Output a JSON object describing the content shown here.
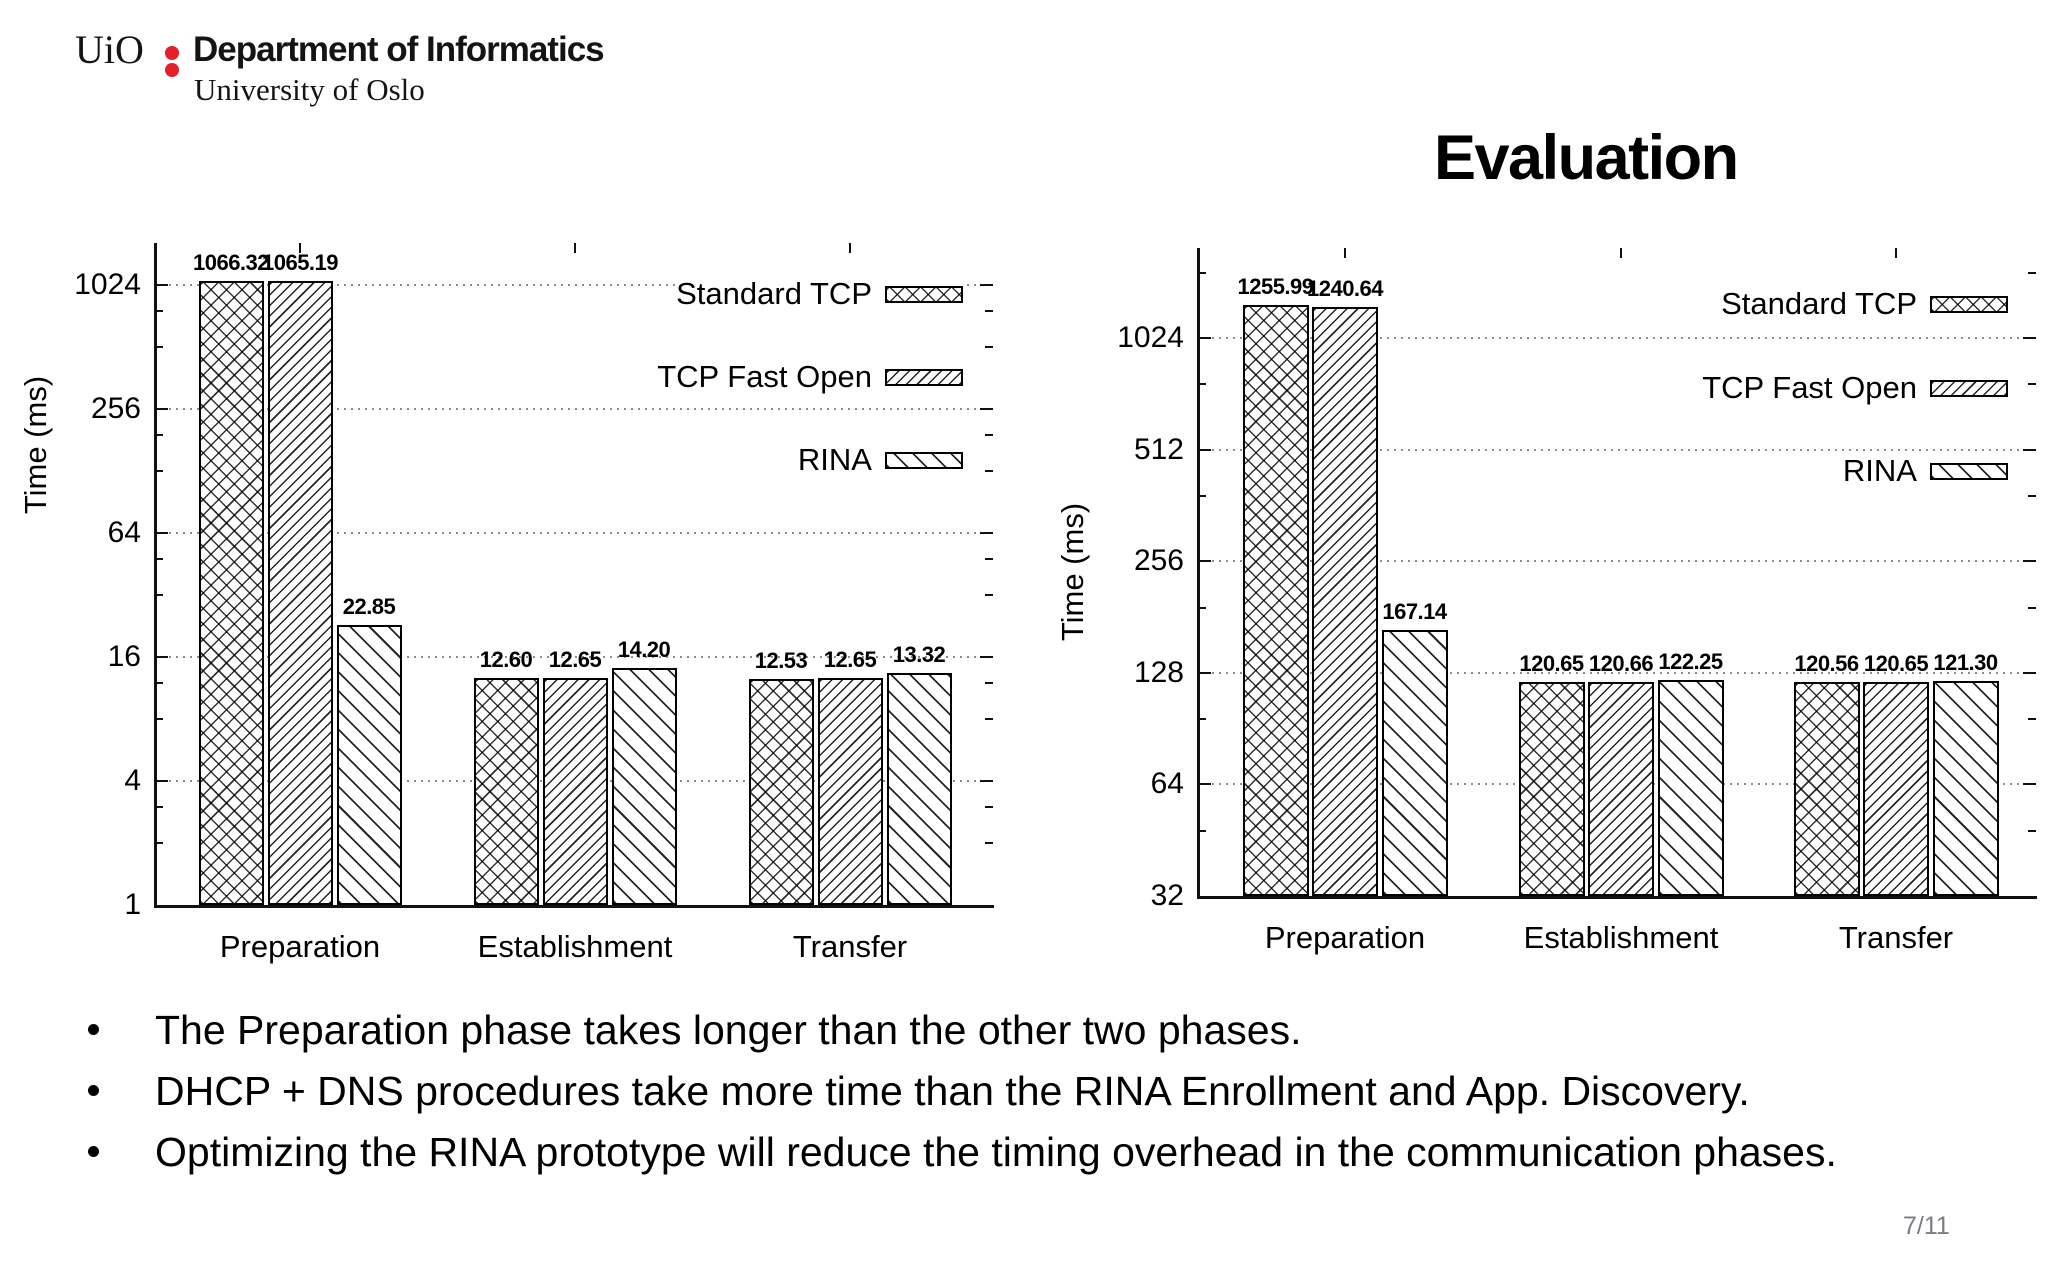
{
  "header": {
    "logo": {
      "acronym": "UiO",
      "department": "Department of Informatics",
      "university": "University of Oslo",
      "accent_color": "#e4202a"
    },
    "title": "Evaluation"
  },
  "legend": {
    "items": [
      {
        "label": "Standard TCP",
        "pattern": "crosshatch"
      },
      {
        "label": "TCP Fast Open",
        "pattern": "fine-forward-diagonal"
      },
      {
        "label": "RINA",
        "pattern": "backward-diagonal"
      }
    ]
  },
  "chart_data": [
    {
      "type": "bar",
      "yscale": "log2",
      "ylabel": "Time (ms)",
      "categories": [
        "Preparation",
        "Establishment",
        "Transfer"
      ],
      "yticks": [
        1,
        4,
        16,
        64,
        256,
        1024
      ],
      "ylim": [
        1,
        1637
      ],
      "grid": "dotted-horizontal-major",
      "legend_position": "top-right-inside",
      "series": [
        {
          "name": "Standard TCP",
          "values": [
            1066.32,
            12.6,
            12.53
          ],
          "labels": [
            "1066.32",
            "12.60",
            "12.53"
          ]
        },
        {
          "name": "TCP Fast Open",
          "values": [
            1065.19,
            12.65,
            12.65
          ],
          "labels": [
            "1065.19",
            "12.65",
            "12.65"
          ]
        },
        {
          "name": "RINA",
          "values": [
            22.85,
            14.2,
            13.32
          ],
          "labels": [
            "22.85",
            "14.20",
            "13.32"
          ]
        }
      ]
    },
    {
      "type": "bar",
      "yscale": "log2",
      "ylabel": "Time (ms)",
      "categories": [
        "Preparation",
        "Establishment",
        "Transfer"
      ],
      "yticks": [
        32,
        64,
        128,
        256,
        512,
        1024
      ],
      "ylim": [
        32,
        1792
      ],
      "grid": "dotted-horizontal-major",
      "legend_position": "top-right-inside",
      "series": [
        {
          "name": "Standard TCP",
          "values": [
            1255.99,
            120.65,
            120.56
          ],
          "labels": [
            "1255.99",
            "120.65",
            "120.56"
          ]
        },
        {
          "name": "TCP Fast Open",
          "values": [
            1240.64,
            120.66,
            120.65
          ],
          "labels": [
            "1240.64",
            "120.66",
            "120.65"
          ]
        },
        {
          "name": "RINA",
          "values": [
            167.14,
            122.25,
            121.3
          ],
          "labels": [
            "167.14",
            "122.25",
            "121.30"
          ]
        }
      ]
    }
  ],
  "bullets": [
    "The Preparation phase takes longer than the other two phases.",
    "DHCP + DNS procedures take more time than the RINA Enrollment and App. Discovery.",
    "Optimizing the RINA prototype will reduce the timing overhead in the communication phases."
  ],
  "footer": {
    "page_number": "7/11"
  }
}
